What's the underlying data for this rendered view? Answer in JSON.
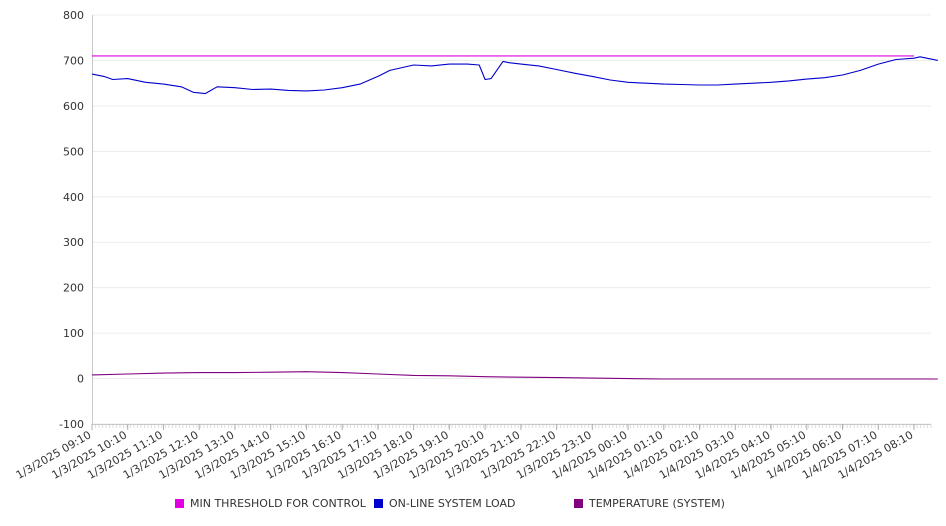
{
  "chart_data": {
    "type": "line",
    "title": "",
    "xlabel": "",
    "ylabel": "",
    "ylim": [
      -100,
      800
    ],
    "yticks": [
      800,
      700,
      600,
      500,
      400,
      300,
      200,
      100,
      0,
      -100
    ],
    "grid": true,
    "legend_position": "bottom",
    "x_tick_labels": [
      "1/3/2025 09:10",
      "1/3/2025 10:10",
      "1/3/2025 11:10",
      "1/3/2025 12:10",
      "1/3/2025 13:10",
      "1/3/2025 14:10",
      "1/3/2025 15:10",
      "1/3/2025 16:10",
      "1/3/2025 17:10",
      "1/3/2025 18:10",
      "1/3/2025 19:10",
      "1/3/2025 20:10",
      "1/3/2025 21:10",
      "1/3/2025 22:10",
      "1/3/2025 23:10",
      "1/4/2025 00:10",
      "1/4/2025 01:10",
      "1/4/2025 02:10",
      "1/4/2025 03:10",
      "1/4/2025 04:10",
      "1/4/2025 05:10",
      "1/4/2025 06:10",
      "1/4/2025 07:10",
      "1/4/2025 08:10"
    ],
    "series": [
      {
        "name": "MIN THRESHOLD FOR CONTROL",
        "color": "#e000e0",
        "x": [
          "1/3/2025 09:10",
          "1/4/2025 08:10"
        ],
        "y": [
          710,
          710
        ]
      },
      {
        "name": "ON-LINE SYSTEM LOAD",
        "color": "#0000cc",
        "x": [
          "1/3/2025 09:10",
          "1/3/2025 09:30",
          "1/3/2025 09:45",
          "1/3/2025 10:10",
          "1/3/2025 10:40",
          "1/3/2025 11:10",
          "1/3/2025 11:40",
          "1/3/2025 12:00",
          "1/3/2025 12:20",
          "1/3/2025 12:40",
          "1/3/2025 13:10",
          "1/3/2025 13:40",
          "1/3/2025 14:10",
          "1/3/2025 14:40",
          "1/3/2025 15:10",
          "1/3/2025 15:40",
          "1/3/2025 16:10",
          "1/3/2025 16:40",
          "1/3/2025 17:10",
          "1/3/2025 17:30",
          "1/3/2025 18:10",
          "1/3/2025 18:40",
          "1/3/2025 19:10",
          "1/3/2025 19:40",
          "1/3/2025 20:00",
          "1/3/2025 20:10",
          "1/3/2025 20:20",
          "1/3/2025 20:40",
          "1/3/2025 20:50",
          "1/3/2025 21:10",
          "1/3/2025 21:40",
          "1/3/2025 22:10",
          "1/3/2025 22:40",
          "1/3/2025 23:10",
          "1/3/2025 23:40",
          "1/4/2025 00:10",
          "1/4/2025 00:40",
          "1/4/2025 01:10",
          "1/4/2025 01:40",
          "1/4/2025 02:10",
          "1/4/2025 02:40",
          "1/4/2025 03:10",
          "1/4/2025 03:40",
          "1/4/2025 04:10",
          "1/4/2025 04:40",
          "1/4/2025 05:10",
          "1/4/2025 05:40",
          "1/4/2025 06:10",
          "1/4/2025 06:40",
          "1/4/2025 07:10",
          "1/4/2025 07:40",
          "1/4/2025 08:10",
          "1/4/2025 08:20",
          "1/4/2025 08:50"
        ],
        "y": [
          670,
          665,
          658,
          660,
          652,
          648,
          642,
          630,
          627,
          642,
          640,
          636,
          637,
          634,
          633,
          635,
          640,
          648,
          665,
          678,
          690,
          688,
          692,
          692,
          690,
          658,
          660,
          698,
          695,
          692,
          688,
          680,
          672,
          665,
          657,
          652,
          650,
          648,
          647,
          646,
          646,
          648,
          650,
          652,
          655,
          659,
          662,
          668,
          678,
          692,
          702,
          705,
          708,
          700
        ]
      },
      {
        "name": "TEMPERATURE (SYSTEM)",
        "color": "#800080",
        "x": [
          "1/3/2025 09:10",
          "1/3/2025 10:10",
          "1/3/2025 11:10",
          "1/3/2025 12:10",
          "1/3/2025 13:10",
          "1/3/2025 14:10",
          "1/3/2025 15:10",
          "1/3/2025 16:10",
          "1/3/2025 17:10",
          "1/3/2025 18:10",
          "1/3/2025 19:10",
          "1/3/2025 20:10",
          "1/3/2025 21:10",
          "1/3/2025 22:10",
          "1/3/2025 23:10",
          "1/4/2025 00:10",
          "1/4/2025 01:10",
          "1/4/2025 02:10",
          "1/4/2025 03:10",
          "1/4/2025 04:10",
          "1/4/2025 05:10",
          "1/4/2025 06:10",
          "1/4/2025 07:10",
          "1/4/2025 08:10",
          "1/4/2025 08:50"
        ],
        "y": [
          8,
          10,
          12,
          13,
          13,
          14,
          15,
          13,
          10,
          7,
          6,
          4,
          3,
          2,
          1,
          0,
          -1,
          -1,
          -1,
          -1,
          -1,
          -1,
          -1,
          -1,
          -1
        ]
      }
    ]
  }
}
